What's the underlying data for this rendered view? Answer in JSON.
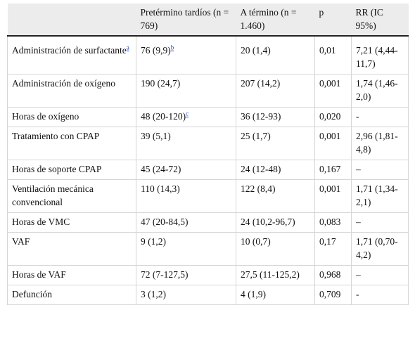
{
  "headers": [
    "Pretérmino tardíos (n = 769)",
    "A término (n = 1.460)",
    "p",
    "RR (IC 95%)"
  ],
  "rows": [
    {
      "label": "Administración de surfactante",
      "label_sup": "a",
      "preterm": "76 (9,9)",
      "preterm_sup": "b",
      "term": "20 (1,4)",
      "p": "0,01",
      "rr": "7,21 (4,44-11,7)"
    },
    {
      "label": "Administración de oxígeno",
      "label_sup": "",
      "preterm": "190 (24,7)",
      "preterm_sup": "",
      "term": "207 (14,2)",
      "p": "0,001",
      "rr": "1,74 (1,46-2,0)"
    },
    {
      "label": "Horas de oxígeno",
      "label_sup": "",
      "preterm": "48 (20-120)",
      "preterm_sup": "c",
      "term": "36 (12-93)",
      "p": "0,020",
      "rr": "-"
    },
    {
      "label": "Tratamiento con CPAP",
      "label_sup": "",
      "preterm": "39 (5,1)",
      "preterm_sup": "",
      "term": "25 (1,7)",
      "p": "0,001",
      "rr": "2,96 (1,81-4,8)"
    },
    {
      "label": "Horas de soporte CPAP",
      "label_sup": "",
      "preterm": "45 (24-72)",
      "preterm_sup": "",
      "term": "24 (12-48)",
      "p": "0,167",
      "rr": "–"
    },
    {
      "label": "Ventilación mecánica convencional",
      "label_sup": "",
      "preterm": "110 (14,3)",
      "preterm_sup": "",
      "term": "122 (8,4)",
      "p": "0,001",
      "rr": "1,71 (1,34-2,1)"
    },
    {
      "label": "Horas de VMC",
      "label_sup": "",
      "preterm": "47 (20-84,5)",
      "preterm_sup": "",
      "term": "24 (10,2-96,7)",
      "p": "0,083",
      "rr": "–"
    },
    {
      "label": "VAF",
      "label_sup": "",
      "preterm": "9 (1,2)",
      "preterm_sup": "",
      "term": "10 (0,7)",
      "p": "0,17",
      "rr": "1,71 (0,70-4,2)"
    },
    {
      "label": "Horas de VAF",
      "label_sup": "",
      "preterm": "72 (7-127,5)",
      "preterm_sup": "",
      "term": "27,5 (11-125,2)",
      "p": "0,968",
      "rr": "–"
    },
    {
      "label": "Defunción",
      "label_sup": "",
      "preterm": "3 (1,2)",
      "preterm_sup": "",
      "term": "4 (1,9)",
      "p": "0,709",
      "rr": "-"
    }
  ]
}
